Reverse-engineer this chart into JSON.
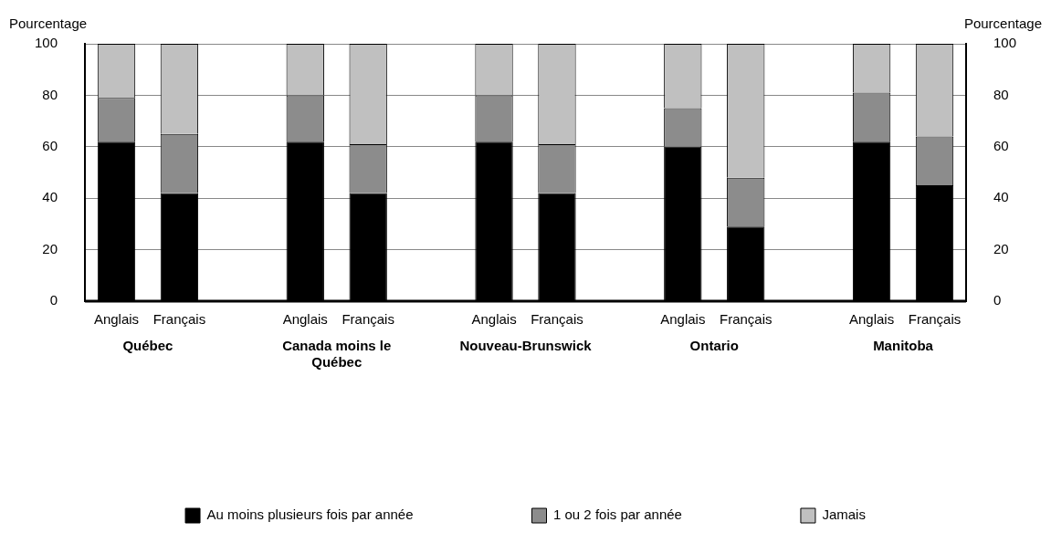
{
  "chart_data": {
    "type": "bar",
    "stacked": true,
    "ylabel": "Pourcentage",
    "y2label": "Pourcentage",
    "categories": [
      "Anglais",
      "Français",
      null,
      "Anglais",
      "Français",
      null,
      "Anglais",
      "Français",
      null,
      "Anglais",
      "Français",
      null,
      "Anglais",
      "Français"
    ],
    "series": [
      {
        "name": "Au moins plusieurs fois par année",
        "color": "#000000",
        "values": [
          62,
          42,
          null,
          62,
          42,
          null,
          62,
          42,
          null,
          60,
          29,
          null,
          62,
          45
        ]
      },
      {
        "name": "1 ou 2 fois par année",
        "color": "#8c8c8c",
        "values": [
          17,
          23,
          null,
          18,
          19,
          null,
          18,
          19,
          null,
          15,
          19,
          null,
          19,
          19
        ]
      },
      {
        "name": "Jamais",
        "color": "#c0c0c0",
        "values": [
          21,
          35,
          null,
          20,
          39,
          null,
          20,
          39,
          null,
          25,
          52,
          null,
          19,
          36
        ]
      }
    ],
    "ylim": [
      0,
      100
    ],
    "yticks": [
      0,
      20,
      40,
      60,
      80,
      100
    ],
    "y2lim": [
      0,
      100
    ],
    "y2ticks": [
      0,
      20,
      40,
      60,
      80,
      100
    ],
    "grid": "y",
    "legend": "bottom",
    "annotations": [
      "Québec",
      "Canada moins le Québec",
      "Nouveau-Brunswick",
      "Ontario",
      "Manitoba"
    ]
  }
}
